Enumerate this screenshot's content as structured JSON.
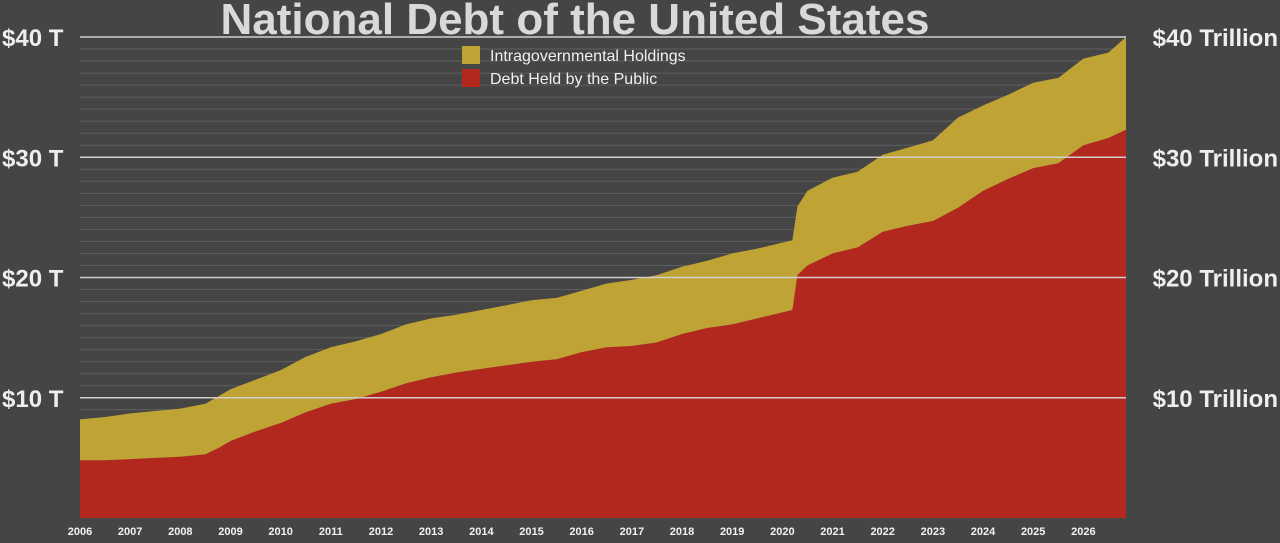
{
  "chart_data": {
    "type": "area",
    "title": "National Debt of the United States",
    "xlabel": "",
    "ylabel": "",
    "x_range": [
      2006.0,
      2026.85
    ],
    "ylim": [
      0,
      40
    ],
    "y_unit": "trillion USD",
    "grid": true,
    "legend_position": "top-center",
    "y_ticks_left": [
      {
        "value": 10,
        "label": "$10 T"
      },
      {
        "value": 20,
        "label": "$20 T"
      },
      {
        "value": 30,
        "label": "$30 T"
      },
      {
        "value": 40,
        "label": "$40 T"
      }
    ],
    "y_ticks_right": [
      {
        "value": 10,
        "label": "$10 Trillion"
      },
      {
        "value": 20,
        "label": "$20 Trillion"
      },
      {
        "value": 30,
        "label": "$30 Trillion"
      },
      {
        "value": 40,
        "label": "$40 Trillion"
      }
    ],
    "x_ticks": [
      {
        "value": 2006,
        "label": "2006"
      },
      {
        "value": 2007,
        "label": "2007"
      },
      {
        "value": 2008,
        "label": "2008"
      },
      {
        "value": 2009,
        "label": "2009"
      },
      {
        "value": 2010,
        "label": "2010"
      },
      {
        "value": 2011,
        "label": "2011"
      },
      {
        "value": 2012,
        "label": "2012"
      },
      {
        "value": 2013,
        "label": "2013"
      },
      {
        "value": 2014,
        "label": "2014"
      },
      {
        "value": 2015,
        "label": "2015"
      },
      {
        "value": 2016,
        "label": "2016"
      },
      {
        "value": 2017,
        "label": "2017"
      },
      {
        "value": 2018,
        "label": "2018"
      },
      {
        "value": 2019,
        "label": "2019"
      },
      {
        "value": 2020,
        "label": "2020"
      },
      {
        "value": 2021,
        "label": "2021"
      },
      {
        "value": 2022,
        "label": "2022"
      },
      {
        "value": 2023,
        "label": "2023"
      },
      {
        "value": 2024,
        "label": "2024"
      },
      {
        "value": 2025,
        "label": "2025"
      },
      {
        "value": 2026,
        "label": "2026"
      }
    ],
    "x": [
      2006.0,
      2006.5,
      2007.0,
      2007.5,
      2008.0,
      2008.5,
      2008.75,
      2009.0,
      2009.5,
      2010.0,
      2010.5,
      2011.0,
      2011.5,
      2012.0,
      2012.5,
      2013.0,
      2013.5,
      2014.0,
      2014.5,
      2015.0,
      2015.5,
      2016.0,
      2016.5,
      2017.0,
      2017.5,
      2018.0,
      2018.5,
      2019.0,
      2019.5,
      2020.0,
      2020.2,
      2020.3,
      2020.5,
      2021.0,
      2021.5,
      2022.0,
      2022.5,
      2023.0,
      2023.5,
      2024.0,
      2024.5,
      2025.0,
      2025.5,
      2026.0,
      2026.5,
      2026.85
    ],
    "series": [
      {
        "name": "Debt Held by the Public",
        "color": "#b3281e",
        "values": [
          4.8,
          4.8,
          4.9,
          5.0,
          5.1,
          5.3,
          5.8,
          6.4,
          7.2,
          7.9,
          8.8,
          9.5,
          9.9,
          10.5,
          11.2,
          11.7,
          12.1,
          12.4,
          12.7,
          13.0,
          13.2,
          13.8,
          14.2,
          14.3,
          14.6,
          15.3,
          15.8,
          16.1,
          16.6,
          17.1,
          17.3,
          20.2,
          21.0,
          22.0,
          22.5,
          23.8,
          24.3,
          24.7,
          25.8,
          27.2,
          28.2,
          29.1,
          29.5,
          31.0,
          31.6,
          32.3
        ]
      },
      {
        "name": "Intragovernmental Holdings",
        "color": "#c0a335",
        "values": [
          3.4,
          3.6,
          3.8,
          3.9,
          4.0,
          4.2,
          4.3,
          4.3,
          4.3,
          4.4,
          4.6,
          4.7,
          4.8,
          4.8,
          4.9,
          4.9,
          4.8,
          4.9,
          5.0,
          5.1,
          5.1,
          5.1,
          5.3,
          5.5,
          5.6,
          5.6,
          5.6,
          5.9,
          5.8,
          5.8,
          5.8,
          5.7,
          6.2,
          6.3,
          6.3,
          6.4,
          6.5,
          6.7,
          7.5,
          7.1,
          7.0,
          7.1,
          7.1,
          7.2,
          7.1,
          7.7
        ]
      }
    ],
    "legend": [
      {
        "label": "Intragovernmental Holdings",
        "color": "#c0a335"
      },
      {
        "label": "Debt Held by the Public",
        "color": "#b3281e"
      }
    ]
  }
}
